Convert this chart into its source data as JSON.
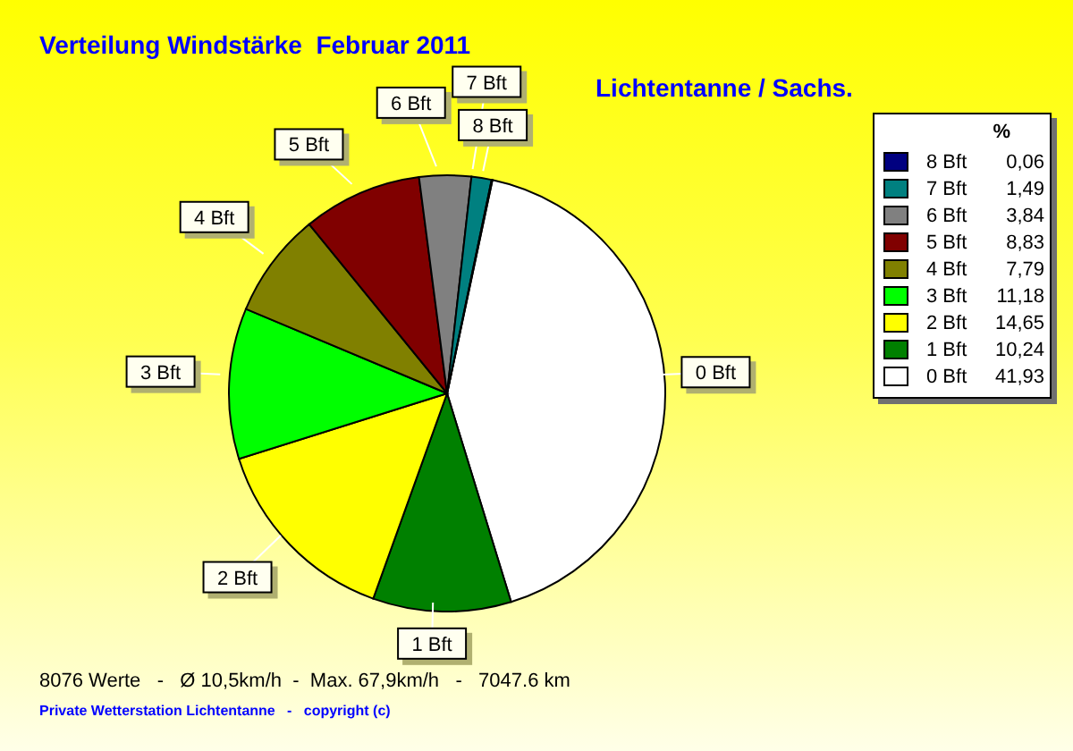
{
  "chart_data": {
    "type": "pie",
    "title": "Verteilung Windstärke  Februar 2011",
    "subtitle": "Lichtentanne / Sachs.",
    "categories": [
      "0 Bft",
      "1 Bft",
      "2 Bft",
      "3 Bft",
      "4 Bft",
      "5 Bft",
      "6 Bft",
      "7 Bft",
      "8 Bft"
    ],
    "values": [
      41.93,
      10.24,
      14.65,
      11.18,
      7.79,
      8.83,
      3.84,
      1.49,
      0.06
    ],
    "value_labels": [
      "41,93",
      "10,24",
      "14,65",
      "11,18",
      "7,79",
      "8,83",
      "3,84",
      "1,49",
      "0,06"
    ],
    "colors": [
      "#ffffff",
      "#008000",
      "#ffff00",
      "#00ff00",
      "#808000",
      "#800000",
      "#808080",
      "#008080",
      "#000080"
    ],
    "legend_title": "%",
    "legend": "top right",
    "annotations": [
      "8076 Werte   -   Ø 10,5km/h  -  Max. 67,9km/h   -   7047.6 km",
      "Private Wetterstation Lichtentanne   -   copyright (c)"
    ]
  }
}
